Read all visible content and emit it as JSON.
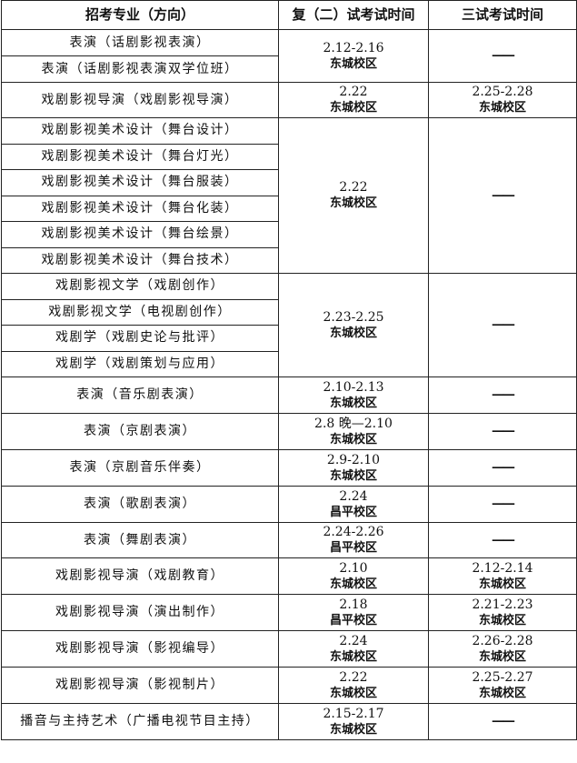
{
  "headers": [
    "招考专业（方向）",
    "复（二）试考试时间",
    "三试考试时间"
  ],
  "groups": [
    {
      "majors": [
        "表演（话剧影视表演）",
        "表演（话剧影视表演双学位班）"
      ],
      "second": {
        "date": "2.12-2.16",
        "campus": "东城校区"
      },
      "third": null,
      "row_h": 29
    },
    {
      "majors": [
        "戏剧影视导演（戏剧影视导演）"
      ],
      "second": {
        "date": "2.22",
        "campus": "东城校区"
      },
      "third": {
        "date": "2.25-2.28",
        "campus": "东城校区"
      },
      "row_h": 39
    },
    {
      "majors": [
        "戏剧影视美术设计（舞台设计）",
        "戏剧影视美术设计（舞台灯光）",
        "戏剧影视美术设计（舞台服装）",
        "戏剧影视美术设计（舞台化装）",
        "戏剧影视美术设计（舞台绘景）",
        "戏剧影视美术设计（舞台技术）"
      ],
      "second": {
        "date": "2.22",
        "campus": "东城校区"
      },
      "third": null,
      "row_h": 28.5
    },
    {
      "majors": [
        "戏剧影视文学（戏剧创作）",
        "戏剧影视文学（电视剧创作）",
        "戏剧学（戏剧史论与批评）",
        "戏剧学（戏剧策划与应用）"
      ],
      "second": {
        "date": "2.23-2.25",
        "campus": "东城校区"
      },
      "third": null,
      "row_h": 28.5
    },
    {
      "majors": [
        "表演（音乐剧表演）"
      ],
      "second": {
        "date": "2.10-2.13",
        "campus": "东城校区"
      },
      "third": null,
      "row_h": 40
    },
    {
      "majors": [
        "表演（京剧表演）"
      ],
      "second": {
        "date": "2.8 晚—2.10",
        "campus": "东城校区"
      },
      "third": null,
      "row_h": 40
    },
    {
      "majors": [
        "表演（京剧音乐伴奏）"
      ],
      "second": {
        "date": "2.9-2.10",
        "campus": "东城校区"
      },
      "third": null,
      "row_h": 40
    },
    {
      "majors": [
        "表演（歌剧表演）"
      ],
      "second": {
        "date": "2.24",
        "campus": "昌平校区"
      },
      "third": null,
      "row_h": 40
    },
    {
      "majors": [
        "表演（舞剧表演）"
      ],
      "second": {
        "date": "2.24-2.26",
        "campus": "昌平校区"
      },
      "third": null,
      "row_h": 39
    },
    {
      "majors": [
        "戏剧影视导演（戏剧教育）"
      ],
      "second": {
        "date": "2.10",
        "campus": "东城校区"
      },
      "third": {
        "date": "2.12-2.14",
        "campus": "东城校区"
      },
      "row_h": 40
    },
    {
      "majors": [
        "戏剧影视导演（演出制作）"
      ],
      "second": {
        "date": "2.18",
        "campus": "昌平校区"
      },
      "third": {
        "date": "2.21-2.23",
        "campus": "东城校区"
      },
      "row_h": 40
    },
    {
      "majors": [
        "戏剧影视导演（影视编导）"
      ],
      "second": {
        "date": "2.24",
        "campus": "东城校区"
      },
      "third": {
        "date": "2.26-2.28",
        "campus": "东城校区"
      },
      "row_h": 40
    },
    {
      "majors": [
        "戏剧影视导演（影视制片）"
      ],
      "second": {
        "date": "2.22",
        "campus": "东城校区"
      },
      "third": {
        "date": "2.25-2.27",
        "campus": "东城校区"
      },
      "row_h": 40
    },
    {
      "majors": [
        "播音与主持艺术（广播电视节目主持）"
      ],
      "second": {
        "date": "2.15-2.17",
        "campus": "东城校区"
      },
      "third": null,
      "row_h": 40
    }
  ],
  "empty_mark": "——"
}
